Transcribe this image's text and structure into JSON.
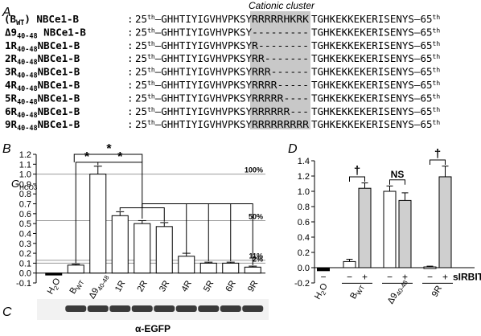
{
  "panelA": {
    "letter": "A",
    "cluster_label": "Cationic cluster",
    "rows": [
      {
        "name": "(B",
        "sub": "WT",
        "suffix": ") NBCe1-B",
        "seq_pre": "GHHTIYIGVHVPKSY",
        "cluster": "RRRRRHKRK",
        "seq_post": "TGHKEKKEKERISENYS"
      },
      {
        "name": "Δ9",
        "sub": "40-48",
        "suffix": " NBCe1-B",
        "seq_pre": "GHHTIYIGVHVPKSY",
        "cluster": "---------",
        "seq_post": "TGHKEKKEKERISENYS"
      },
      {
        "name": "1R",
        "sub": "40-48",
        "suffix": "NBCe1-B",
        "seq_pre": "GHHTIYIGVHVPKSY",
        "cluster": "R--------",
        "seq_post": "TGHKEKKEKERISENYS"
      },
      {
        "name": "2R",
        "sub": "40-48",
        "suffix": "NBCe1-B",
        "seq_pre": "GHHTIYIGVHVPKSY",
        "cluster": "RR-------",
        "seq_post": "TGHKEKKEKERISENYS"
      },
      {
        "name": "3R",
        "sub": "40-48",
        "suffix": "NBCe1-B",
        "seq_pre": "GHHTIYIGVHVPKSY",
        "cluster": "RRR------",
        "seq_post": "TGHKEKKEKERISENYS"
      },
      {
        "name": "4R",
        "sub": "40-48",
        "suffix": "NBCe1-B",
        "seq_pre": "GHHTIYIGVHVPKSY",
        "cluster": "RRRR-----",
        "seq_post": "TGHKEKKEKERISENYS"
      },
      {
        "name": "5R",
        "sub": "40-48",
        "suffix": "NBCe1-B",
        "seq_pre": "GHHTIYIGVHVPKSY",
        "cluster": "RRRRR----",
        "seq_post": "TGHKEKKEKERISENYS"
      },
      {
        "name": "6R",
        "sub": "40-48",
        "suffix": "NBCe1-B",
        "seq_pre": "GHHTIYIGVHVPKSY",
        "cluster": "RRRRRR---",
        "seq_post": "TGHKEKKEKERISENYS"
      },
      {
        "name": "9R",
        "sub": "40-48",
        "suffix": "NBCe1-B",
        "seq_pre": "GHHTIYIGVHVPKSY",
        "cluster": "RRRRRRRRR",
        "seq_post": "TGHKEKKEKERISENYS"
      }
    ],
    "start_label": "25",
    "end_label": "65",
    "ordinal": "th",
    "colon": ":",
    "dash": "—"
  },
  "chart_data": [
    {
      "panel": "B",
      "type": "bar",
      "ylabel": "G",
      "ylabel_sub": "HCO3",
      "ylim": [
        -0.1,
        1.2
      ],
      "yticks": [
        "-0.1",
        "0.0",
        "0.1",
        "0.2",
        "0.3",
        "0.4",
        "0.5",
        "0.6",
        "0.7",
        "0.8",
        "0.9",
        "1.0",
        "1.1",
        "1.2"
      ],
      "categories": [
        {
          "main": "H",
          "sub": "2",
          "tail": "O"
        },
        {
          "main": "B",
          "sub": "WT",
          "tail": ""
        },
        {
          "main": "Δ9",
          "sub": "40-48",
          "tail": ""
        },
        {
          "main": "1R",
          "sub": "",
          "tail": ""
        },
        {
          "main": "2R",
          "sub": "",
          "tail": ""
        },
        {
          "main": "3R",
          "sub": "",
          "tail": ""
        },
        {
          "main": "4R",
          "sub": "",
          "tail": ""
        },
        {
          "main": "5R",
          "sub": "",
          "tail": ""
        },
        {
          "main": "6R",
          "sub": "",
          "tail": ""
        },
        {
          "main": "9R",
          "sub": "",
          "tail": ""
        }
      ],
      "values": [
        -0.02,
        0.08,
        1.0,
        0.58,
        0.5,
        0.47,
        0.17,
        0.1,
        0.1,
        0.06
      ],
      "errors": [
        0.005,
        0.01,
        0.08,
        0.04,
        0.03,
        0.04,
        0.03,
        0.01,
        0.01,
        0.01
      ],
      "reference_lines": [
        {
          "value": 1.0,
          "label": "100%"
        },
        {
          "value": 0.53,
          "label": "50%"
        },
        {
          "value": 0.13,
          "label": "11%"
        },
        {
          "value": 0.1,
          "label": "2%"
        }
      ],
      "significance": [
        "*",
        "*",
        "*"
      ]
    },
    {
      "panel": "D",
      "type": "bar",
      "ylim": [
        -0.2,
        1.4
      ],
      "yticks": [
        "-0.2",
        "0.0",
        "0.2",
        "0.4",
        "0.6",
        "0.8",
        "1.0",
        "1.2",
        "1.4"
      ],
      "series": [
        {
          "name": "−",
          "values": [
            -0.04,
            0.08,
            1.0,
            0.01
          ]
        },
        {
          "name": "+",
          "values": [
            null,
            1.04,
            0.88,
            1.19
          ]
        }
      ],
      "errors_minus": [
        0.01,
        0.03,
        0.07,
        0.01
      ],
      "errors_plus": [
        null,
        0.07,
        0.1,
        0.14
      ],
      "groups": [
        {
          "main": "H",
          "sub": "2",
          "tail": "O"
        },
        {
          "main": "B",
          "sub": "WT",
          "tail": ""
        },
        {
          "main": "Δ9",
          "sub": "40-48",
          "tail": ""
        },
        {
          "main": "9R",
          "sub": "",
          "tail": ""
        }
      ],
      "sign_labels": {
        "minus": "−",
        "plus": "+"
      },
      "treatment_label": "sIRBIT",
      "annotations": [
        "†",
        "NS",
        "†"
      ]
    }
  ],
  "panelB": {
    "letter": "B"
  },
  "panelC": {
    "letter": "C",
    "antibody": "α-EGFP"
  },
  "panelD": {
    "letter": "D"
  }
}
